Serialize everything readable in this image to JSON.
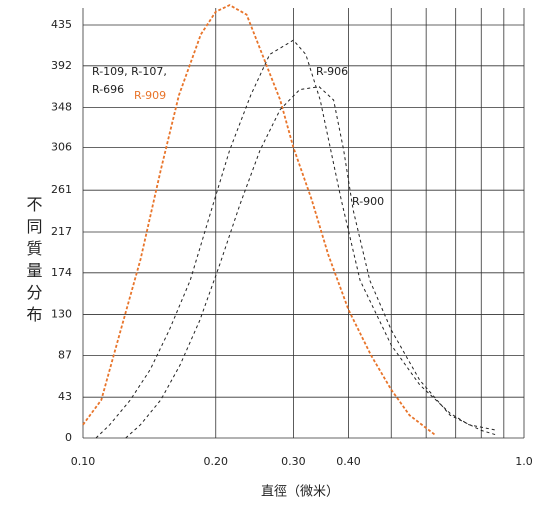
{
  "chart_data": {
    "type": "line",
    "ylabel": "不同質量分布",
    "xlabel": "直徑（微米）",
    "xscale": "log",
    "grid": true,
    "xlim": [
      0.1,
      1
    ],
    "ylim": [
      0,
      435
    ],
    "xticks": [
      {
        "value": 0.1,
        "label": "0.10"
      },
      {
        "value": 0.2,
        "label": "0.20"
      },
      {
        "value": 0.3,
        "label": "0.30"
      },
      {
        "value": 0.4,
        "label": "0.40"
      },
      {
        "value": 0.5,
        "label": null
      },
      {
        "value": 0.6,
        "label": null
      },
      {
        "value": 0.7,
        "label": null
      },
      {
        "value": 0.8,
        "label": null
      },
      {
        "value": 0.9,
        "label": null
      },
      {
        "value": 1,
        "label": "1.0"
      }
    ],
    "yticks": [
      0,
      43,
      87,
      130,
      174,
      217,
      261,
      306,
      348,
      392,
      435
    ],
    "annotations": [
      "R-109, R-107,",
      "R-696"
    ],
    "series": [
      {
        "name": "R-909",
        "color": "#e8742a",
        "x": [
          0.1,
          0.11,
          0.12,
          0.135,
          0.15,
          0.165,
          0.185,
          0.2,
          0.215,
          0.235,
          0.25,
          0.28,
          0.3,
          0.33,
          0.36,
          0.4,
          0.45,
          0.5,
          0.55,
          0.63
        ],
        "values": [
          14,
          40,
          103,
          188,
          282,
          361,
          425,
          449,
          456,
          446,
          414,
          356,
          306,
          251,
          193,
          135,
          87,
          51,
          24,
          3
        ]
      },
      {
        "name": "R-906",
        "color": "#222222",
        "x": [
          0.107,
          0.115,
          0.128,
          0.142,
          0.157,
          0.175,
          0.194,
          0.215,
          0.24,
          0.265,
          0.3,
          0.32,
          0.345,
          0.385,
          0.425,
          0.5,
          0.58,
          0.68,
          0.75,
          0.87
        ],
        "values": [
          0,
          14,
          40,
          72,
          114,
          166,
          235,
          303,
          361,
          404,
          419,
          404,
          356,
          251,
          166,
          98,
          56,
          26,
          14,
          8
        ]
      },
      {
        "name": "R-900",
        "color": "#222222",
        "x": [
          0.125,
          0.135,
          0.15,
          0.166,
          0.184,
          0.204,
          0.227,
          0.252,
          0.28,
          0.31,
          0.343,
          0.37,
          0.39,
          0.41,
          0.447,
          0.5,
          0.58,
          0.68,
          0.8,
          0.87
        ],
        "values": [
          0,
          14,
          40,
          77,
          124,
          182,
          246,
          303,
          346,
          367,
          370,
          356,
          303,
          240,
          166,
          114,
          61,
          24,
          8,
          3
        ]
      }
    ]
  }
}
